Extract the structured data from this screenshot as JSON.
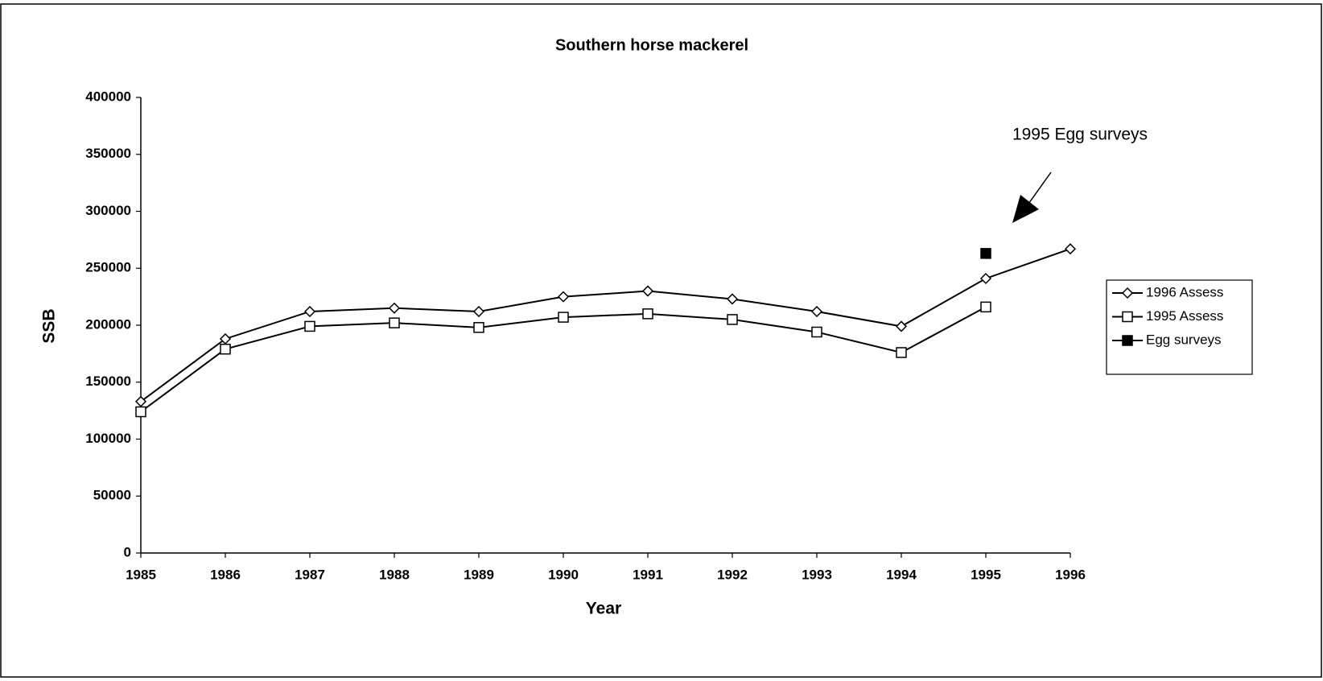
{
  "chart_data": {
    "type": "line",
    "title": "Southern horse mackerel",
    "x_label": "Year",
    "y_label": "SSB",
    "annotation": "1995 Egg surveys",
    "x": [
      1985,
      1986,
      1987,
      1988,
      1989,
      1990,
      1991,
      1992,
      1993,
      1994,
      1995,
      1996
    ],
    "xlim": [
      1985,
      1996
    ],
    "xticks": [
      1985,
      1986,
      1987,
      1988,
      1989,
      1990,
      1991,
      1992,
      1993,
      1994,
      1995,
      1996
    ],
    "ylim": [
      0,
      400000
    ],
    "yticks": [
      0,
      50000,
      100000,
      150000,
      200000,
      250000,
      300000,
      350000,
      400000
    ],
    "grid": false,
    "legend": "right",
    "series": [
      {
        "name": "1996 Assess",
        "color": "#000000",
        "marker": "diamond",
        "values": [
          133000,
          188000,
          212000,
          215000,
          212000,
          225000,
          230000,
          223000,
          212000,
          199000,
          241000,
          267000
        ]
      },
      {
        "name": "1995 Assess",
        "color": "#000000",
        "marker": "square",
        "values": [
          124000,
          179000,
          199000,
          202000,
          198000,
          207000,
          210000,
          205000,
          194000,
          176000,
          216000,
          null
        ]
      },
      {
        "name": "Egg surveys",
        "color": "#000000",
        "marker": "square-filled",
        "values": [
          null,
          null,
          null,
          null,
          null,
          null,
          null,
          null,
          null,
          null,
          263000,
          null
        ]
      }
    ]
  }
}
